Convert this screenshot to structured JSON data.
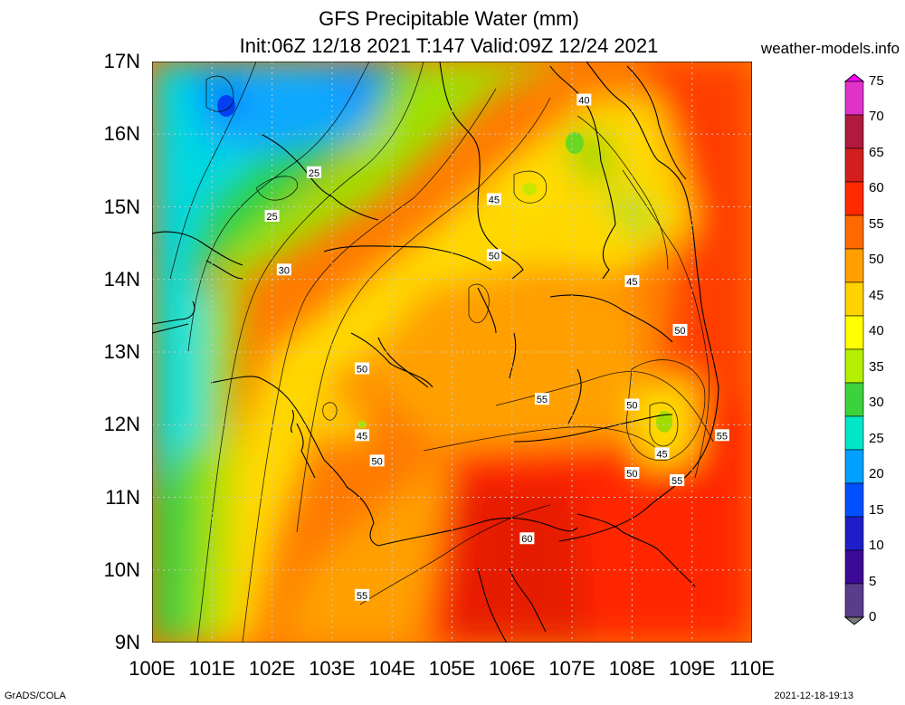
{
  "title": {
    "line1": "GFS Precipitable Water (mm)",
    "line2": "Init:06Z 12/18 2021 T:147 Valid:09Z 12/24 2021"
  },
  "source": "weather-models.info",
  "footer": {
    "left": "GrADS/COLA",
    "right": "2021-12-18-19:13"
  },
  "axes": {
    "lat_labels": [
      "17N",
      "16N",
      "15N",
      "14N",
      "13N",
      "12N",
      "11N",
      "10N",
      "9N"
    ],
    "lon_labels": [
      "100E",
      "101E",
      "102E",
      "103E",
      "104E",
      "105E",
      "106E",
      "107E",
      "108E",
      "109E",
      "110E"
    ],
    "lat_range": [
      9,
      17
    ],
    "lon_range": [
      100,
      110
    ]
  },
  "colorbar": {
    "labels": [
      "75",
      "70",
      "65",
      "60",
      "55",
      "50",
      "45",
      "40",
      "35",
      "30",
      "25",
      "20",
      "15",
      "10",
      "5",
      "0"
    ],
    "colors": [
      "#ff00ff",
      "#e032c8",
      "#b01a3c",
      "#d21e1e",
      "#ff2a00",
      "#ff6a00",
      "#ffa000",
      "#ffd200",
      "#ffff00",
      "#b4f000",
      "#3cd23c",
      "#00e6c8",
      "#00a0ff",
      "#0050ff",
      "#1e1ec8",
      "#3c0a96",
      "#5a3c8c",
      "#7a7a7a"
    ]
  },
  "contour_labels": [
    {
      "text": "40",
      "lon": 107.2,
      "lat": 16.47
    },
    {
      "text": "25",
      "lon": 102.7,
      "lat": 15.47
    },
    {
      "text": "25",
      "lon": 102.0,
      "lat": 14.87
    },
    {
      "text": "45",
      "lon": 105.7,
      "lat": 15.1
    },
    {
      "text": "30",
      "lon": 102.2,
      "lat": 14.13
    },
    {
      "text": "50",
      "lon": 105.7,
      "lat": 14.33
    },
    {
      "text": "45",
      "lon": 108.0,
      "lat": 13.97
    },
    {
      "text": "50",
      "lon": 108.8,
      "lat": 13.3
    },
    {
      "text": "50",
      "lon": 103.5,
      "lat": 12.77
    },
    {
      "text": "55",
      "lon": 106.5,
      "lat": 12.35
    },
    {
      "text": "50",
      "lon": 108.0,
      "lat": 12.27
    },
    {
      "text": "55",
      "lon": 109.5,
      "lat": 11.85
    },
    {
      "text": "45",
      "lon": 103.5,
      "lat": 11.85
    },
    {
      "text": "45",
      "lon": 108.5,
      "lat": 11.6
    },
    {
      "text": "50",
      "lon": 103.75,
      "lat": 11.5
    },
    {
      "text": "50",
      "lon": 108.0,
      "lat": 11.33
    },
    {
      "text": "55",
      "lon": 108.75,
      "lat": 11.23
    },
    {
      "text": "60",
      "lon": 106.25,
      "lat": 10.43
    },
    {
      "text": "55",
      "lon": 103.5,
      "lat": 9.65
    }
  ]
}
